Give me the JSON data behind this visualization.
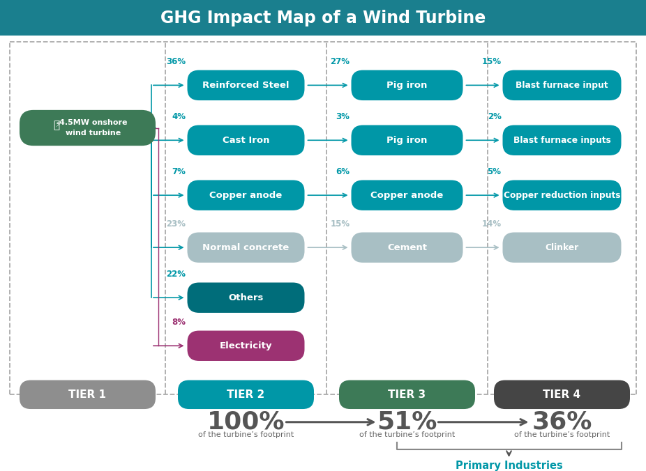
{
  "title": "GHG Impact Map of a Wind Turbine",
  "title_bg": "#1a7f8e",
  "title_color": "#ffffff",
  "bg_color": "#ffffff",
  "teal": "#0097a7",
  "dark_teal": "#006d7a",
  "green": "#3d7a57",
  "gray_light": "#a8bfc4",
  "gray_dark": "#757575",
  "purple": "#9c3272",
  "tier_gray": "#8e8e8e",
  "tier2_color": "#0097a7",
  "tier3_color": "#3d7a57",
  "tier4_color": "#454545",
  "tier1_label": "TIER 1",
  "tier2_label": "TIER 2",
  "tier3_label": "TIER 3",
  "tier4_label": "TIER 4",
  "t2_items": [
    {
      "label": "Reinforced Steel",
      "pct": "36%",
      "color": "#0097a7",
      "pct_color": "#0097a7"
    },
    {
      "label": "Cast Iron",
      "pct": "4%",
      "color": "#0097a7",
      "pct_color": "#0097a7"
    },
    {
      "label": "Copper anode",
      "pct": "7%",
      "color": "#0097a7",
      "pct_color": "#0097a7"
    },
    {
      "label": "Normal concrete",
      "pct": "23%",
      "color": "#a8bfc4",
      "pct_color": "#a8bfc4"
    },
    {
      "label": "Others",
      "pct": "22%",
      "color": "#006d7a",
      "pct_color": "#0097a7"
    },
    {
      "label": "Electricity",
      "pct": "8%",
      "color": "#9c3272",
      "pct_color": "#9c3272"
    }
  ],
  "t3_items": [
    {
      "label": "Pig iron",
      "pct": "27%",
      "color": "#0097a7",
      "pct_color": "#0097a7"
    },
    {
      "label": "Pig iron",
      "pct": "3%",
      "color": "#0097a7",
      "pct_color": "#0097a7"
    },
    {
      "label": "Copper anode",
      "pct": "6%",
      "color": "#0097a7",
      "pct_color": "#0097a7"
    },
    {
      "label": "Cement",
      "pct": "15%",
      "color": "#a8bfc4",
      "pct_color": "#a8bfc4"
    }
  ],
  "t4_items": [
    {
      "label": "Blast furnace input",
      "pct": "15%",
      "color": "#0097a7",
      "pct_color": "#0097a7"
    },
    {
      "label": "Blast furnace inputs",
      "pct": "2%",
      "color": "#0097a7",
      "pct_color": "#0097a7"
    },
    {
      "label": "Copper reduction inputs",
      "pct": "5%",
      "color": "#0097a7",
      "pct_color": "#0097a7"
    },
    {
      "label": "Clinker",
      "pct": "14%",
      "color": "#a8bfc4",
      "pct_color": "#a8bfc4"
    }
  ],
  "bottom_sub": "of the turbine’s footprint",
  "primary_industries": "Primary Industries",
  "primary_color": "#0097a7",
  "arrow_teal": "#0097a7",
  "arrow_gray": "#a8bfc4",
  "divider_color": "#aaaaaa",
  "bracket_color": "#888888"
}
